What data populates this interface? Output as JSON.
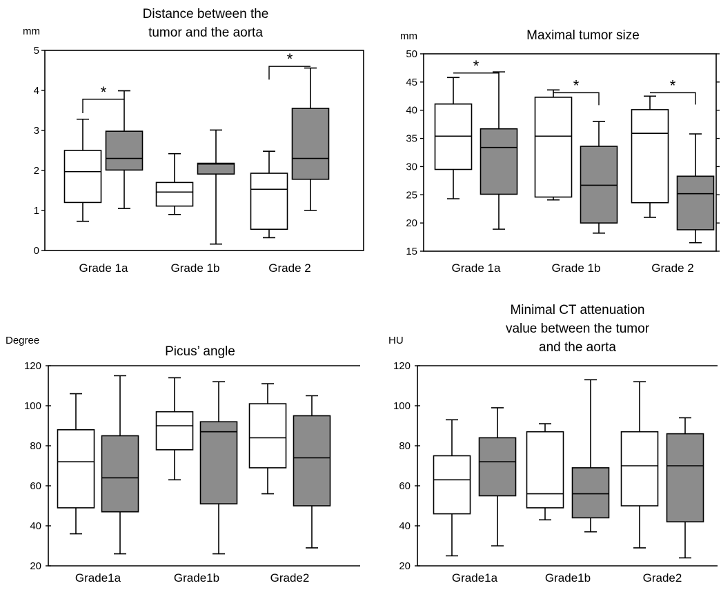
{
  "figure_name": "boxplot-panels",
  "colors": {
    "group1_fill": "#ffffff",
    "group2_fill": "#8c8c8c",
    "line": "#000000",
    "panel_border": "#000000"
  },
  "chart_data": [
    {
      "type": "boxplot",
      "title": [
        "Distance between the",
        "tumor and the aorta"
      ],
      "ylabel": "mm",
      "ylim": [
        0,
        5
      ],
      "yticks": [
        0,
        1,
        2,
        3,
        4,
        5
      ],
      "categories": [
        "Grade 1a",
        "Grade 1b",
        "Grade 2"
      ],
      "grid": false,
      "legend": "none",
      "series": [
        {
          "fill": "white",
          "boxes": [
            {
              "min": 0.73,
              "q1": 1.2,
              "median": 1.97,
              "q3": 2.5,
              "max": 3.28
            },
            {
              "min": 0.9,
              "q1": 1.11,
              "median": 1.46,
              "q3": 1.7,
              "max": 2.42
            },
            {
              "min": 0.32,
              "q1": 0.53,
              "median": 1.53,
              "q3": 1.93,
              "max": 2.48
            }
          ]
        },
        {
          "fill": "gray",
          "boxes": [
            {
              "min": 1.05,
              "q1": 2.01,
              "median": 2.3,
              "q3": 2.98,
              "max": 3.99
            },
            {
              "min": 0.16,
              "q1": 1.91,
              "median": 2.16,
              "q3": 2.18,
              "max": 3.01
            },
            {
              "min": 1.0,
              "q1": 1.78,
              "median": 2.3,
              "q3": 3.55,
              "max": 4.56
            }
          ]
        }
      ],
      "significance": [
        {
          "category": 0,
          "label": "*",
          "y": 3.78,
          "drop_left": 3.43,
          "drop_right": 3.78
        },
        {
          "category": 2,
          "label": "*",
          "y": 4.6,
          "drop_left": 4.27,
          "drop_right": 4.6
        }
      ]
    },
    {
      "type": "boxplot",
      "title": [
        "Maximal tumor size"
      ],
      "ylabel": "mm",
      "ylim": [
        15,
        50
      ],
      "yticks": [
        15,
        20,
        25,
        30,
        35,
        40,
        45,
        50
      ],
      "categories": [
        "Grade 1a",
        "Grade 1b",
        "Grade 2"
      ],
      "grid": false,
      "legend": "none",
      "series": [
        {
          "fill": "white",
          "boxes": [
            {
              "min": 24.3,
              "q1": 29.5,
              "median": 35.4,
              "q3": 41.1,
              "max": 45.8
            },
            {
              "min": 24.1,
              "q1": 24.6,
              "median": 35.4,
              "q3": 42.3,
              "max": 43.6
            },
            {
              "min": 21.0,
              "q1": 23.6,
              "median": 35.9,
              "q3": 40.1,
              "max": 42.5
            }
          ]
        },
        {
          "fill": "gray",
          "boxes": [
            {
              "min": 18.9,
              "q1": 25.1,
              "median": 33.4,
              "q3": 36.7,
              "max": 46.8
            },
            {
              "min": 18.2,
              "q1": 20.0,
              "median": 26.7,
              "q3": 33.6,
              "max": 38.0
            },
            {
              "min": 16.5,
              "q1": 18.8,
              "median": 25.2,
              "q3": 28.3,
              "max": 35.8
            }
          ]
        }
      ],
      "significance": [
        {
          "category": 0,
          "label": "*",
          "y": 46.6,
          "drop_left": 46.6,
          "drop_right": 46.6
        },
        {
          "category": 1,
          "label": "*",
          "y": 43.1,
          "drop_left": 43.1,
          "drop_right": 40.9
        },
        {
          "category": 2,
          "label": "*",
          "y": 43.1,
          "drop_left": 43.1,
          "drop_right": 41.0
        }
      ]
    },
    {
      "type": "boxplot",
      "title": [
        "Picus’ angle"
      ],
      "ylabel": "Degree",
      "ylim": [
        20,
        120
      ],
      "yticks": [
        20,
        40,
        60,
        80,
        100,
        120
      ],
      "categories": [
        "Grade1a",
        "Grade1b",
        "Grade2"
      ],
      "grid": false,
      "legend": "none",
      "series": [
        {
          "fill": "white",
          "boxes": [
            {
              "min": 36,
              "q1": 49,
              "median": 72,
              "q3": 88,
              "max": 106
            },
            {
              "min": 63,
              "q1": 78,
              "median": 90,
              "q3": 97,
              "max": 114
            },
            {
              "min": 56,
              "q1": 69,
              "median": 84,
              "q3": 101,
              "max": 111
            }
          ]
        },
        {
          "fill": "gray",
          "boxes": [
            {
              "min": 26,
              "q1": 47,
              "median": 64,
              "q3": 85,
              "max": 115
            },
            {
              "min": 26,
              "q1": 51,
              "median": 87,
              "q3": 92,
              "max": 112
            },
            {
              "min": 29,
              "q1": 50,
              "median": 74,
              "q3": 95,
              "max": 105
            }
          ]
        }
      ],
      "significance": []
    },
    {
      "type": "boxplot",
      "title": [
        "Minimal CT attenuation",
        "value between the tumor",
        "and the aorta"
      ],
      "ylabel": "HU",
      "ylim": [
        20,
        120
      ],
      "yticks": [
        20,
        40,
        60,
        80,
        100,
        120
      ],
      "categories": [
        "Grade1a",
        "Grade1b",
        "Grade2"
      ],
      "grid": false,
      "legend": "none",
      "series": [
        {
          "fill": "white",
          "boxes": [
            {
              "min": 25,
              "q1": 46,
              "median": 63,
              "q3": 75,
              "max": 93
            },
            {
              "min": 43,
              "q1": 49,
              "median": 56,
              "q3": 87,
              "max": 91
            },
            {
              "min": 29,
              "q1": 50,
              "median": 70,
              "q3": 87,
              "max": 112
            }
          ]
        },
        {
          "fill": "gray",
          "boxes": [
            {
              "min": 30,
              "q1": 55,
              "median": 72,
              "q3": 84,
              "max": 99
            },
            {
              "min": 37,
              "q1": 44,
              "median": 56,
              "q3": 69,
              "max": 113
            },
            {
              "min": 24,
              "q1": 42,
              "median": 70,
              "q3": 86,
              "max": 94
            }
          ]
        }
      ],
      "significance": []
    }
  ]
}
